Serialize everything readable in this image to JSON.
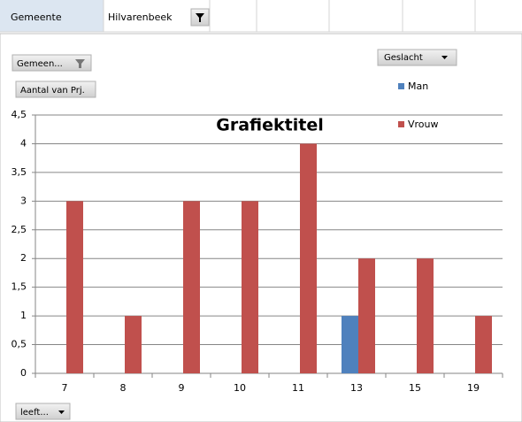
{
  "sheet": {
    "cells": [
      "Gemeente",
      "Hilvarenbeek"
    ]
  },
  "buttons": {
    "filter_field": "Gemeen...",
    "value_field": "Aantal van Prj.",
    "legend_field": "Geslacht",
    "axis_field": "leeft..."
  },
  "chart_data": {
    "type": "bar",
    "title": "Grafiektitel",
    "categories": [
      "7",
      "8",
      "9",
      "10",
      "11",
      "13",
      "15",
      "19"
    ],
    "series": [
      {
        "name": "Man",
        "color": "#4f81bd",
        "values": [
          null,
          null,
          null,
          null,
          null,
          1,
          null,
          null
        ]
      },
      {
        "name": "Vrouw",
        "color": "#c0504d",
        "values": [
          3,
          1,
          3,
          3,
          4,
          2,
          2,
          1
        ]
      }
    ],
    "ylim": [
      0,
      4.5
    ],
    "yticks": [
      0,
      {
        "value": 0.5,
        "label": "0,5"
      },
      1,
      {
        "value": 1.5,
        "label": "1,5"
      },
      2,
      {
        "value": 2.5,
        "label": "2,5"
      },
      3,
      {
        "value": 3.5,
        "label": "3,5"
      },
      4,
      {
        "value": 4.5,
        "label": "4,5"
      }
    ],
    "grid": true,
    "legend": "right"
  }
}
